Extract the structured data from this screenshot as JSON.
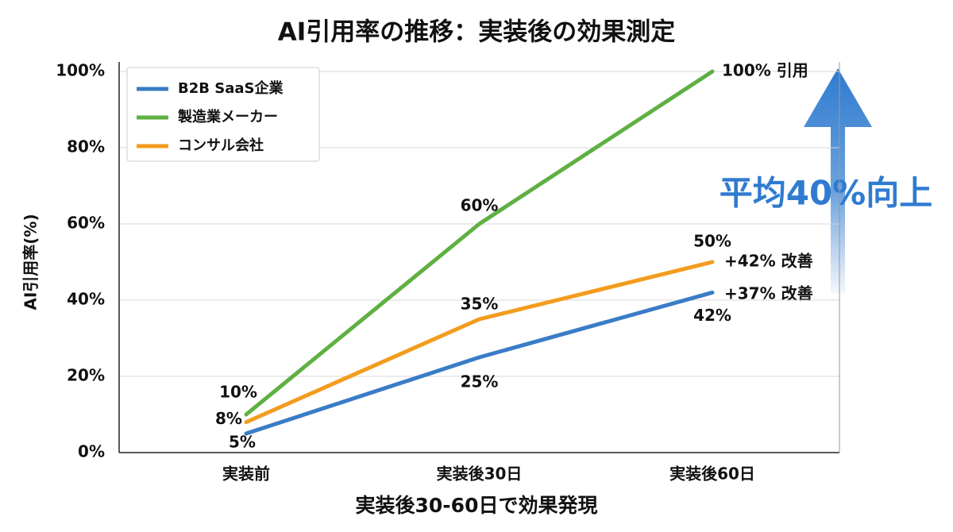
{
  "chart_data": {
    "type": "line",
    "title": "AI引用率の推移：実装後の効果測定",
    "ylabel": "AI引用率(%)",
    "xlabel": "実装後30-60日で効果発現",
    "categories": [
      "実装前",
      "実装後30日",
      "実装後60日"
    ],
    "series": [
      {
        "name": "B2B SaaS企業",
        "color": "#3a7cc6",
        "values": [
          5,
          25,
          42
        ],
        "value_labels": [
          "5%",
          "25%",
          "42%"
        ]
      },
      {
        "name": "製造業メーカー",
        "color": "#5fb043",
        "values": [
          10,
          60,
          100
        ],
        "value_labels": [
          "10%",
          "60%",
          "100% 引用"
        ]
      },
      {
        "name": "コンサル会社",
        "color": "#f39c1e",
        "values": [
          8,
          35,
          50
        ],
        "value_labels": [
          "8%",
          "35%",
          "50%"
        ]
      }
    ],
    "ylim": [
      0,
      100
    ],
    "yticks": [
      {
        "value": 0,
        "label": "0%"
      },
      {
        "value": 20,
        "label": "20%"
      },
      {
        "value": 40,
        "label": "40%"
      },
      {
        "value": 60,
        "label": "60%"
      },
      {
        "value": 80,
        "label": "80%"
      },
      {
        "value": 100,
        "label": "100%"
      }
    ],
    "grid": true,
    "legend": "upper left",
    "annotations": [
      "+42% 改善",
      "+37% 改善",
      "平均40%向上"
    ]
  }
}
